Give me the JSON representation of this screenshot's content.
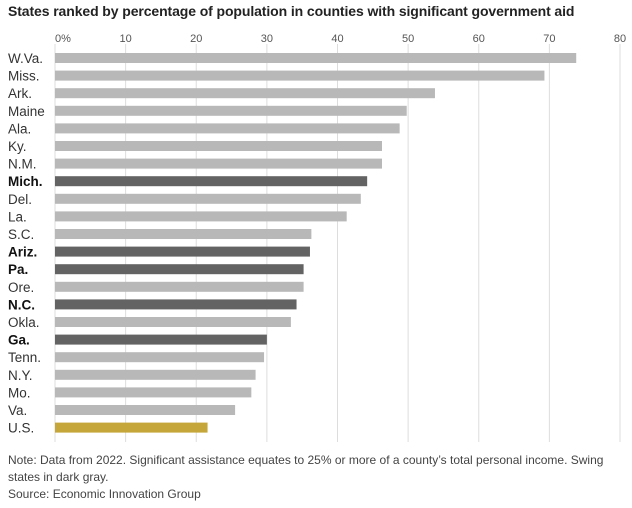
{
  "chart_data": {
    "type": "bar",
    "orientation": "horizontal",
    "title": "States ranked by percentage of population in counties with significant government aid",
    "xlim": [
      0,
      80
    ],
    "x_ticks": [
      "0%",
      "10",
      "20",
      "30",
      "40",
      "50",
      "60",
      "70",
      "80"
    ],
    "grid": true,
    "categories": [
      "W.Va.",
      "Miss.",
      "Ark.",
      "Maine",
      "Ala.",
      "Ky.",
      "N.M.",
      "Mich.",
      "Del.",
      "La.",
      "S.C.",
      "Ariz.",
      "Pa.",
      "Ore.",
      "N.C.",
      "Okla.",
      "Ga.",
      "Tenn.",
      "N.Y.",
      "Mo.",
      "Va.",
      "U.S."
    ],
    "values": [
      73.8,
      69.3,
      53.8,
      49.8,
      48.8,
      46.3,
      46.3,
      44.2,
      43.3,
      41.3,
      36.3,
      36.1,
      35.2,
      35.2,
      34.2,
      33.4,
      30.0,
      29.6,
      28.4,
      27.8,
      25.5,
      21.6
    ],
    "bar_groups": [
      "standard",
      "standard",
      "standard",
      "standard",
      "standard",
      "standard",
      "standard",
      "swing",
      "standard",
      "standard",
      "standard",
      "swing",
      "swing",
      "standard",
      "swing",
      "standard",
      "swing",
      "standard",
      "standard",
      "standard",
      "standard",
      "national"
    ],
    "colors": {
      "standard": "#b8b8b8",
      "swing": "#636363",
      "national": "#c5a63a",
      "grid": "#dddddd"
    }
  },
  "footer": {
    "note": "Note: Data from 2022. Significant assistance equates to 25% or more of a county’s total personal income. Swing states in dark gray.",
    "source": "Source: Economic Innovation Group"
  }
}
